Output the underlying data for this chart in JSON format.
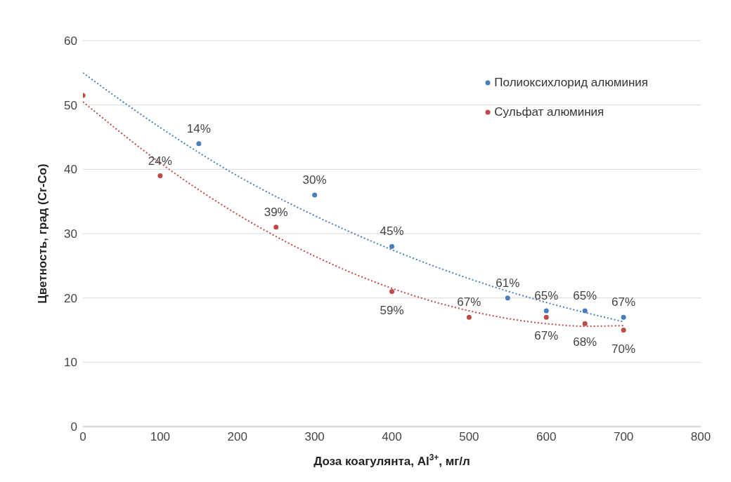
{
  "chart_data": {
    "type": "scatter",
    "xlabel": "Доза коагулянта,  Al$^{3+}$, мг/л",
    "ylabel": "Цветность, град (Cr-Co)",
    "xlim": [
      0,
      800
    ],
    "xticks": [
      0,
      100,
      200,
      300,
      400,
      500,
      600,
      700,
      800
    ],
    "ylim": [
      0,
      60
    ],
    "yticks": [
      0,
      10,
      20,
      30,
      40,
      50,
      60
    ],
    "grid": "y",
    "legend": "top right",
    "marker": "circle",
    "annotations": [
      {
        "text": "14%",
        "x": 150,
        "y": 44
      },
      {
        "text": "30%",
        "x": 300,
        "y": 36
      },
      {
        "text": "45%",
        "x": 400,
        "y": 28
      },
      {
        "text": "61%",
        "x": 550,
        "y": 20
      },
      {
        "text": "65%",
        "x": 600,
        "y": 18
      },
      {
        "text": "65%",
        "x": 650,
        "y": 18
      },
      {
        "text": "67%",
        "x": 700,
        "y": 17
      },
      {
        "text": "24%",
        "x": 100,
        "y": 39
      },
      {
        "text": "39%",
        "x": 250,
        "y": 31
      },
      {
        "text": "59%",
        "x": 400,
        "y": 21
      },
      {
        "text": "67%",
        "x": 500,
        "y": 17
      },
      {
        "text": "67%",
        "x": 600,
        "y": 17
      },
      {
        "text": "68%",
        "x": 650,
        "y": 16
      },
      {
        "text": "70%",
        "x": 700,
        "y": 15
      }
    ],
    "series": [
      {
        "name": "Полиоксихлорид алюминия",
        "color": "#4a7ebb",
        "x": [
          150,
          300,
          400,
          550,
          600,
          650,
          700
        ],
        "values": [
          44,
          36,
          28,
          20,
          18,
          18,
          17
        ]
      },
      {
        "name": "Сульфат алюминия",
        "color": "#be4b48",
        "x": [
          0,
          100,
          250,
          400,
          500,
          600,
          650,
          700
        ],
        "values": [
          51.5,
          39,
          31,
          21,
          17,
          17,
          16,
          15
        ]
      },
      {
        "type": "line",
        "color": "#4a7ebb",
        "line_style": "dotted",
        "marker": "none",
        "x": [
          0,
          100,
          200,
          300,
          400,
          500,
          600,
          700
        ],
        "values": [
          55,
          46.5,
          39,
          32.8,
          27.5,
          23,
          19.3,
          16.3
        ]
      },
      {
        "type": "line",
        "color": "#be4b48",
        "line_style": "dotted",
        "marker": "none",
        "x": [
          0,
          100,
          200,
          300,
          400,
          500,
          600,
          650,
          700
        ],
        "values": [
          50.5,
          41,
          33,
          26.5,
          21.5,
          18,
          16,
          15.6,
          15.7
        ]
      }
    ]
  }
}
